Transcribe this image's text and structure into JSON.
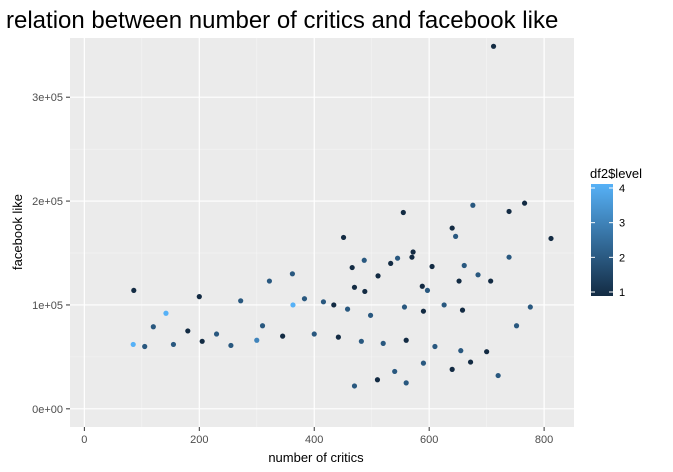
{
  "chart_data": {
    "type": "scatter",
    "title": "relation between number of critics and facebook like",
    "xlabel": "number of critics",
    "ylabel": "facebook like",
    "xlim": [
      -25,
      852
    ],
    "ylim": [
      -17500,
      357000
    ],
    "x_ticks": [
      0,
      200,
      400,
      600,
      800
    ],
    "x_tick_labels": [
      "0",
      "200",
      "400",
      "600",
      "800"
    ],
    "y_ticks": [
      0,
      100000,
      200000,
      300000
    ],
    "y_tick_labels": [
      "0e+00",
      "1e+05",
      "2e+05",
      "3e+05"
    ],
    "grid": true,
    "background": "#ebebeb",
    "legend": {
      "title": "df2$level",
      "placement": "right",
      "type": "colorbar",
      "min": 1,
      "max": 4,
      "breaks": [
        1,
        2,
        3,
        4
      ],
      "break_labels": [
        "1",
        "2",
        "3",
        "4"
      ],
      "low_color": "#132b43",
      "high_color": "#56b1f7"
    },
    "points": [
      [
        712,
        349000,
        1
      ],
      [
        766,
        198000,
        1
      ],
      [
        676,
        196000,
        2
      ],
      [
        812,
        164000,
        1
      ],
      [
        739,
        190000,
        1
      ],
      [
        555,
        189000,
        1
      ],
      [
        640,
        174000,
        1
      ],
      [
        646,
        166000,
        2
      ],
      [
        451,
        165000,
        1
      ],
      [
        572,
        151000,
        1
      ],
      [
        570,
        146000,
        1
      ],
      [
        545,
        145000,
        2
      ],
      [
        739,
        146000,
        2
      ],
      [
        487,
        143000,
        2
      ],
      [
        605,
        137000,
        1
      ],
      [
        661,
        138000,
        2
      ],
      [
        533,
        140000,
        1
      ],
      [
        362,
        130000,
        2
      ],
      [
        322,
        123000,
        2
      ],
      [
        466,
        136000,
        1
      ],
      [
        707,
        123000,
        1
      ],
      [
        652,
        123000,
        1
      ],
      [
        685,
        129000,
        2
      ],
      [
        588,
        118000,
        1
      ],
      [
        511,
        128000,
        1
      ],
      [
        488,
        113000,
        1
      ],
      [
        597,
        114000,
        2
      ],
      [
        470,
        117000,
        1
      ],
      [
        86,
        114000,
        1
      ],
      [
        200,
        108000,
        1
      ],
      [
        272,
        104000,
        2
      ],
      [
        363,
        100000,
        4
      ],
      [
        383,
        106000,
        2
      ],
      [
        416,
        103000,
        2
      ],
      [
        776,
        98000,
        2
      ],
      [
        142,
        92000,
        4
      ],
      [
        434,
        100000,
        1
      ],
      [
        458,
        96000,
        2
      ],
      [
        498,
        90000,
        2
      ],
      [
        557,
        98000,
        2
      ],
      [
        590,
        94000,
        1
      ],
      [
        626,
        100000,
        2
      ],
      [
        658,
        95000,
        1
      ],
      [
        752,
        80000,
        2
      ],
      [
        120,
        79000,
        2
      ],
      [
        180,
        75000,
        1
      ],
      [
        230,
        72000,
        2
      ],
      [
        310,
        80000,
        2
      ],
      [
        85,
        62000,
        4
      ],
      [
        105,
        60000,
        2
      ],
      [
        155,
        62000,
        2
      ],
      [
        205,
        65000,
        1
      ],
      [
        255,
        61000,
        2
      ],
      [
        300,
        66000,
        3
      ],
      [
        345,
        70000,
        1
      ],
      [
        400,
        72000,
        2
      ],
      [
        442,
        69000,
        1
      ],
      [
        482,
        65000,
        2
      ],
      [
        520,
        63000,
        2
      ],
      [
        560,
        66000,
        1
      ],
      [
        610,
        60000,
        2
      ],
      [
        655,
        56000,
        2
      ],
      [
        700,
        55000,
        1
      ],
      [
        640,
        38000,
        1
      ],
      [
        720,
        32000,
        2
      ],
      [
        672,
        45000,
        1
      ],
      [
        590,
        44000,
        2
      ],
      [
        540,
        36000,
        2
      ],
      [
        510,
        28000,
        1
      ],
      [
        470,
        22000,
        2
      ],
      [
        560,
        25000,
        2
      ]
    ]
  }
}
